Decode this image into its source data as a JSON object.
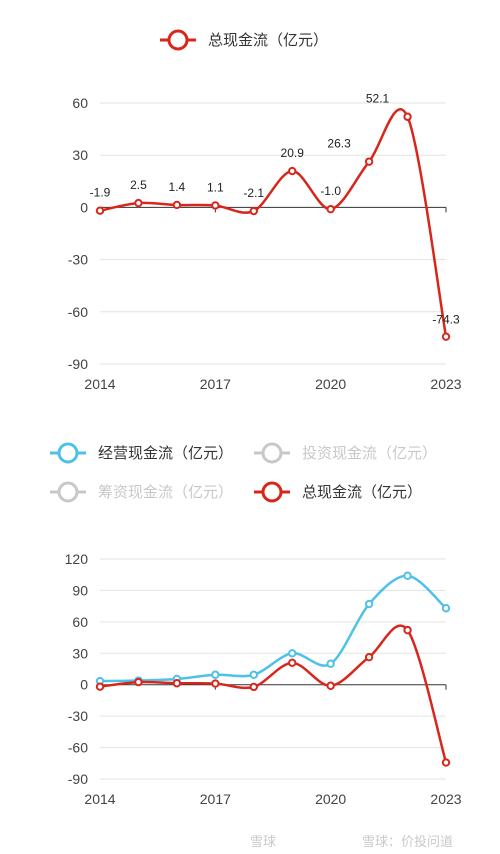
{
  "chart_data": [
    {
      "type": "line",
      "legend": [
        {
          "name": "总现金流（亿元）",
          "color": "#d9261c",
          "active": true
        }
      ],
      "x": [
        "2014",
        "2015",
        "2016",
        "2017",
        "2018",
        "2019",
        "2020",
        "2021",
        "2022",
        "2023"
      ],
      "x_ticks": [
        "2014",
        "2017",
        "2020",
        "2023"
      ],
      "y_ticks": [
        "60",
        "30",
        "0",
        "-30",
        "-60",
        "-90"
      ],
      "ylim": [
        -90,
        60
      ],
      "series": [
        {
          "name": "总现金流（亿元）",
          "color": "#d9261c",
          "values": [
            -1.9,
            2.5,
            1.4,
            1.1,
            -2.1,
            20.9,
            -1.0,
            26.3,
            52.1,
            -74.3
          ],
          "labels": [
            "-1.9",
            "2.5",
            "1.4",
            "1.1",
            "-2.1",
            "20.9",
            "-1.0",
            "26.3",
            "52.1",
            "-74.3"
          ]
        }
      ]
    },
    {
      "type": "line",
      "legend": [
        {
          "name": "经营现金流（亿元）",
          "color": "#4fc1e9",
          "active": true
        },
        {
          "name": "投资现金流（亿元）",
          "color": "#c8c8c8",
          "active": false
        },
        {
          "name": "筹资现金流（亿元）",
          "color": "#c8c8c8",
          "active": false
        },
        {
          "name": "总现金流（亿元）",
          "color": "#d9261c",
          "active": true
        }
      ],
      "x": [
        "2014",
        "2015",
        "2016",
        "2017",
        "2018",
        "2019",
        "2020",
        "2021",
        "2022",
        "2023"
      ],
      "x_ticks": [
        "2014",
        "2017",
        "2020",
        "2023"
      ],
      "y_ticks": [
        "120",
        "90",
        "60",
        "30",
        "0",
        "-30",
        "-60",
        "-90"
      ],
      "ylim": [
        -90,
        120
      ],
      "series": [
        {
          "name": "经营现金流（亿元）",
          "color": "#4fc1e9",
          "values": [
            3.5,
            4.0,
            5.5,
            9.5,
            9.5,
            30.0,
            20.0,
            77.0,
            104.0,
            73.0
          ]
        },
        {
          "name": "总现金流（亿元）",
          "color": "#d9261c",
          "values": [
            -1.9,
            2.5,
            1.4,
            1.1,
            -2.1,
            20.9,
            -1.0,
            26.3,
            52.1,
            -74.3
          ]
        }
      ]
    }
  ],
  "watermark": {
    "left": "雪球",
    "right": "雪球：价投问道"
  }
}
